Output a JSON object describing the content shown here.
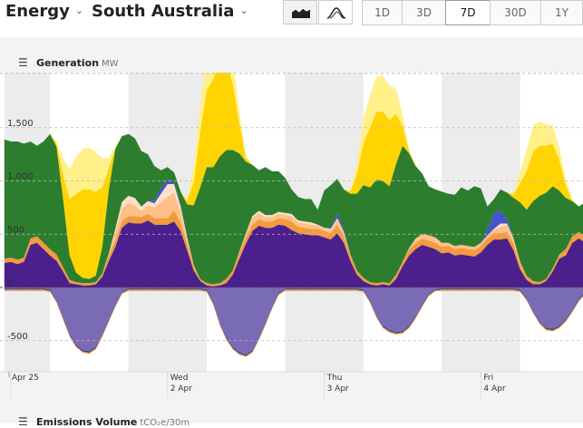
{
  "header": {
    "energy_label": "Energy",
    "region_label": "South Australia",
    "ranges": [
      {
        "label": "1D",
        "active": false
      },
      {
        "label": "3D",
        "active": false
      },
      {
        "label": "7D",
        "active": true
      },
      {
        "label": "30D",
        "active": false
      },
      {
        "label": "1Y",
        "active": false
      }
    ],
    "icons": [
      "stacked-area-chart-icon",
      "line-chart-icon",
      "chevron-down-icon",
      "hamburger-menu-icon"
    ]
  },
  "generation": {
    "title": "Generation",
    "unit": "MW"
  },
  "emissions": {
    "title": "Emissions Volume",
    "unit": "tCO₂e/30m"
  },
  "chart_data": {
    "type": "area",
    "stacked": true,
    "yticks": [
      1500,
      1000,
      500,
      0,
      -500
    ],
    "ytick_labels": [
      "1,500",
      "1,000",
      "500",
      "0",
      "-500"
    ],
    "ylim": [
      -800,
      1950
    ],
    "grid": "dashed horizontal",
    "x_date_ticks": [
      {
        "day": "",
        "date": "Apr 25",
        "hour": 0
      },
      {
        "day": "Wed",
        "date": "2 Apr",
        "hour": 24
      },
      {
        "day": "Thu",
        "date": "3 Apr",
        "hour": 48
      },
      {
        "day": "Fri",
        "date": "4 Apr",
        "hour": 72
      }
    ],
    "night_bands": [
      [
        -1,
        6
      ],
      [
        18,
        30
      ],
      [
        42,
        54
      ],
      [
        66,
        78
      ],
      [
        90,
        92
      ]
    ],
    "hours": [
      -1,
      0,
      1,
      2,
      3,
      4,
      5,
      6,
      7,
      8,
      9,
      10,
      11,
      12,
      13,
      14,
      15,
      16,
      17,
      18,
      19,
      20,
      21,
      22,
      23,
      24,
      25,
      26,
      27,
      28,
      29,
      30,
      31,
      32,
      33,
      34,
      35,
      36,
      37,
      38,
      39,
      40,
      41,
      42,
      43,
      44,
      45,
      46,
      47,
      48,
      49,
      50,
      51,
      52,
      53,
      54,
      55,
      56,
      57,
      58,
      59,
      60,
      61,
      62,
      63,
      64,
      65,
      66,
      67,
      68,
      69,
      70,
      71,
      72,
      73,
      74,
      75,
      76,
      77,
      78,
      79,
      80,
      81,
      82,
      83,
      84,
      85,
      86,
      87,
      88,
      89,
      90,
      91,
      92
    ],
    "colors": {
      "battery_charge": "#7a6bb7",
      "pumps": "#1a3a7a",
      "exports": "#e9873a",
      "coal": "#4b1f8c",
      "gas_ccgt": "#f29b3d",
      "gas_ocgt": "#ffbf88",
      "gas_recip": "#fde0c6",
      "battery": "#4455cc",
      "imports": "#6e4bb5",
      "wind": "#2d7d2f",
      "solar_utility": "#ffd400",
      "solar_rooftop": "#fff08a"
    },
    "neg_series": [
      {
        "key": "battery_charge",
        "values": [
          -10,
          -10,
          -10,
          -10,
          -10,
          -10,
          -10,
          -20,
          -120,
          -280,
          -440,
          -540,
          -590,
          -600,
          -560,
          -440,
          -300,
          -160,
          -40,
          -10,
          -10,
          -10,
          -10,
          -10,
          -10,
          -10,
          -10,
          -10,
          -10,
          -10,
          -10,
          -20,
          -140,
          -330,
          -470,
          -560,
          -610,
          -630,
          -590,
          -470,
          -330,
          -180,
          -50,
          -10,
          -10,
          -10,
          -10,
          -10,
          -10,
          -10,
          -10,
          -10,
          -10,
          -10,
          -10,
          -20,
          -120,
          -260,
          -360,
          -400,
          -420,
          -410,
          -360,
          -270,
          -160,
          -60,
          -15,
          -10,
          -10,
          -10,
          -10,
          -10,
          -10,
          -10,
          -10,
          -10,
          -10,
          -10,
          -10,
          -20,
          -100,
          -220,
          -320,
          -380,
          -390,
          -360,
          -300,
          -210,
          -110,
          -40,
          -10,
          -10,
          -10,
          -10
        ]
      }
    ],
    "pos_series": [
      {
        "key": "coal",
        "values": [
          230,
          240,
          220,
          240,
          400,
          420,
          360,
          300,
          250,
          150,
          40,
          30,
          20,
          20,
          30,
          100,
          250,
          380,
          560,
          610,
          600,
          600,
          630,
          590,
          590,
          590,
          620,
          530,
          350,
          160,
          60,
          20,
          10,
          20,
          40,
          120,
          270,
          410,
          530,
          580,
          560,
          560,
          590,
          580,
          540,
          510,
          500,
          490,
          490,
          470,
          450,
          510,
          420,
          250,
          120,
          60,
          30,
          20,
          30,
          20,
          80,
          200,
          300,
          360,
          400,
          380,
          360,
          320,
          330,
          300,
          310,
          300,
          290,
          330,
          400,
          450,
          450,
          460,
          350,
          170,
          70,
          30,
          30,
          60,
          150,
          270,
          300,
          420,
          460,
          420,
          380,
          350,
          320,
          300
        ]
      },
      {
        "key": "gas_ccgt",
        "values": [
          40,
          40,
          40,
          40,
          60,
          60,
          60,
          60,
          60,
          40,
          30,
          20,
          20,
          20,
          20,
          30,
          50,
          60,
          60,
          60,
          70,
          60,
          60,
          60,
          60,
          60,
          100,
          80,
          60,
          40,
          20,
          20,
          20,
          20,
          40,
          40,
          60,
          60,
          60,
          60,
          60,
          60,
          60,
          60,
          80,
          60,
          60,
          60,
          60,
          60,
          60,
          80,
          60,
          50,
          40,
          30,
          20,
          20,
          20,
          20,
          40,
          40,
          60,
          60,
          60,
          60,
          60,
          60,
          60,
          60,
          60,
          60,
          60,
          60,
          60,
          60,
          60,
          60,
          60,
          50,
          40,
          30,
          20,
          20,
          30,
          40,
          60,
          60,
          60,
          60,
          60,
          60,
          60,
          60
        ]
      },
      {
        "key": "gas_ocgt",
        "values": [
          0,
          0,
          0,
          0,
          0,
          0,
          0,
          0,
          0,
          0,
          0,
          0,
          0,
          0,
          0,
          0,
          20,
          80,
          120,
          120,
          100,
          60,
          80,
          100,
          150,
          200,
          170,
          100,
          40,
          10,
          0,
          0,
          0,
          0,
          0,
          0,
          10,
          40,
          60,
          60,
          40,
          40,
          40,
          40,
          50,
          40,
          40,
          40,
          30,
          20,
          30,
          40,
          30,
          10,
          0,
          0,
          0,
          0,
          0,
          0,
          0,
          0,
          10,
          40,
          40,
          50,
          50,
          40,
          30,
          30,
          30,
          30,
          30,
          30,
          30,
          30,
          60,
          60,
          40,
          20,
          0,
          0,
          0,
          0,
          0,
          0,
          0,
          0,
          0,
          0,
          0,
          0,
          0,
          0
        ]
      },
      {
        "key": "gas_recip",
        "values": [
          0,
          0,
          0,
          0,
          0,
          0,
          0,
          0,
          0,
          0,
          0,
          0,
          0,
          0,
          0,
          0,
          0,
          30,
          60,
          70,
          70,
          40,
          40,
          40,
          80,
          120,
          80,
          50,
          20,
          0,
          0,
          0,
          0,
          0,
          0,
          0,
          0,
          0,
          20,
          20,
          20,
          20,
          20,
          20,
          20,
          20,
          20,
          20,
          10,
          10,
          10,
          20,
          10,
          0,
          0,
          0,
          0,
          0,
          0,
          0,
          0,
          0,
          0,
          0,
          0,
          0,
          0,
          0,
          0,
          0,
          0,
          0,
          0,
          0,
          0,
          10,
          30,
          20,
          10,
          0,
          0,
          0,
          0,
          0,
          0,
          0,
          0,
          0,
          0,
          0,
          0,
          0,
          0,
          0
        ]
      },
      {
        "key": "battery",
        "values": [
          0,
          0,
          0,
          0,
          0,
          0,
          0,
          0,
          0,
          0,
          0,
          0,
          0,
          0,
          0,
          0,
          0,
          0,
          0,
          0,
          0,
          0,
          10,
          20,
          60,
          40,
          20,
          10,
          0,
          0,
          0,
          0,
          0,
          0,
          0,
          0,
          0,
          0,
          0,
          0,
          0,
          0,
          0,
          0,
          0,
          0,
          0,
          0,
          0,
          0,
          10,
          40,
          20,
          0,
          0,
          0,
          0,
          0,
          0,
          0,
          0,
          0,
          0,
          0,
          0,
          0,
          0,
          0,
          0,
          0,
          0,
          0,
          0,
          0,
          50,
          150,
          120,
          40,
          0,
          0,
          0,
          0,
          0,
          0,
          0,
          0,
          0,
          0,
          0,
          0,
          0,
          0,
          0,
          0
        ]
      },
      {
        "key": "wind",
        "values": [
          1120,
          1090,
          1110,
          1070,
          910,
          850,
          950,
          1080,
          1010,
          640,
          230,
          90,
          50,
          40,
          60,
          250,
          600,
          750,
          620,
          580,
          560,
          520,
          430,
          330,
          160,
          120,
          90,
          130,
          310,
          560,
          860,
          1090,
          1100,
          1190,
          1210,
          1130,
          920,
          670,
          480,
          380,
          450,
          410,
          380,
          330,
          230,
          220,
          210,
          220,
          140,
          350,
          400,
          330,
          380,
          570,
          720,
          870,
          890,
          970,
          950,
          910,
          1040,
          1090,
          890,
          680,
          570,
          460,
          450,
          480,
          460,
          480,
          540,
          520,
          570,
          510,
          220,
          130,
          200,
          250,
          380,
          560,
          620,
          750,
          810,
          810,
          770,
          600,
          480,
          330,
          240,
          320,
          420,
          460,
          480,
          480
        ]
      },
      {
        "key": "solar_utility",
        "values": [
          0,
          0,
          0,
          0,
          0,
          0,
          0,
          0,
          30,
          230,
          530,
          740,
          830,
          840,
          790,
          560,
          200,
          10,
          0,
          0,
          0,
          0,
          0,
          0,
          0,
          0,
          0,
          0,
          30,
          220,
          520,
          720,
          830,
          880,
          830,
          620,
          280,
          40,
          0,
          0,
          0,
          0,
          0,
          0,
          0,
          0,
          0,
          0,
          0,
          0,
          0,
          0,
          0,
          20,
          180,
          390,
          560,
          640,
          650,
          620,
          470,
          190,
          20,
          0,
          0,
          0,
          0,
          0,
          0,
          0,
          0,
          0,
          0,
          0,
          0,
          0,
          0,
          0,
          30,
          180,
          360,
          470,
          470,
          440,
          400,
          290,
          120,
          10,
          0,
          0,
          0,
          0,
          0,
          0
        ]
      },
      {
        "key": "solar_rooftop",
        "values": [
          0,
          0,
          0,
          0,
          0,
          0,
          0,
          0,
          20,
          150,
          280,
          350,
          380,
          390,
          370,
          270,
          100,
          10,
          0,
          0,
          0,
          0,
          0,
          0,
          0,
          0,
          0,
          0,
          20,
          150,
          260,
          320,
          340,
          350,
          320,
          240,
          110,
          10,
          0,
          0,
          0,
          0,
          0,
          0,
          0,
          0,
          0,
          0,
          0,
          0,
          0,
          0,
          0,
          10,
          110,
          230,
          300,
          330,
          340,
          320,
          240,
          100,
          10,
          0,
          0,
          0,
          0,
          0,
          0,
          0,
          0,
          0,
          0,
          0,
          0,
          0,
          0,
          0,
          20,
          110,
          200,
          240,
          230,
          200,
          170,
          120,
          50,
          0,
          0,
          0,
          0,
          0,
          0,
          0
        ]
      }
    ]
  }
}
